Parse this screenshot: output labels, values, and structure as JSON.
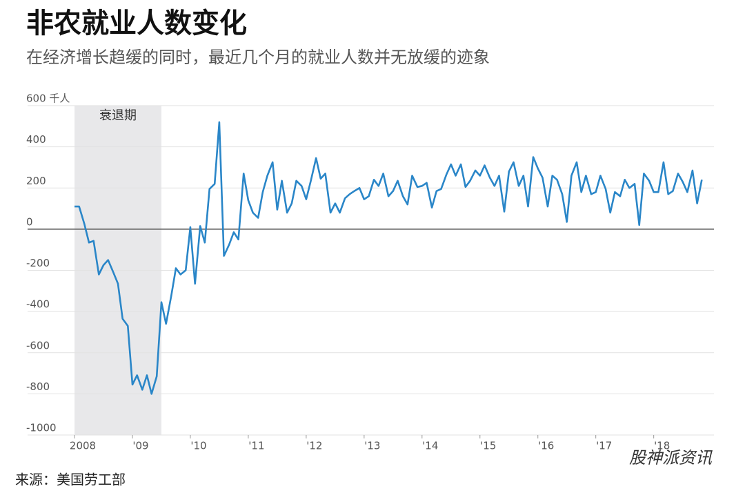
{
  "chart_data": {
    "type": "line",
    "title": "非农就业人数变化",
    "subtitle": "在经济增长趋缓的同时，最近几个月的就业人数并无放缓的迹象",
    "source": "来源：美国劳工部",
    "watermark": "股神派资讯",
    "recession": {
      "label": "衰退期",
      "start": 2008.0,
      "end": 2009.5
    },
    "xlim": [
      2007.19,
      2019.04
    ],
    "xticks": [
      2008,
      {
        "value": 2009,
        "label": "'09"
      },
      {
        "value": 2010,
        "label": "'10"
      },
      {
        "value": 2011,
        "label": "'11"
      },
      {
        "value": 2012,
        "label": "'12"
      },
      {
        "value": 2013,
        "label": "'13"
      },
      {
        "value": 2014,
        "label": "'14"
      },
      {
        "value": 2015,
        "label": "'15"
      },
      {
        "value": 2016,
        "label": "'16"
      },
      {
        "value": 2017,
        "label": "'17"
      },
      {
        "value": 2018,
        "label": "'18"
      }
    ],
    "ylim": [
      -1000,
      600
    ],
    "yticks": [
      -1000,
      -800,
      -600,
      -400,
      -200,
      0,
      200,
      400,
      {
        "value": 600,
        "label": "600 千人"
      }
    ],
    "grid": true,
    "series": [
      {
        "color": "#2a86c8",
        "x": [
          2008.0,
          2008.08,
          2008.17,
          2008.25,
          2008.33,
          2008.42,
          2008.5,
          2008.58,
          2008.67,
          2008.75,
          2008.83,
          2008.92,
          2009.0,
          2009.08,
          2009.17,
          2009.25,
          2009.33,
          2009.42,
          2009.5,
          2009.58,
          2009.67,
          2009.75,
          2009.83,
          2009.92,
          2010.0,
          2010.08,
          2010.17,
          2010.25,
          2010.33,
          2010.42,
          2010.5,
          2010.58,
          2010.67,
          2010.75,
          2010.83,
          2010.92,
          2011.0,
          2011.08,
          2011.17,
          2011.25,
          2011.33,
          2011.42,
          2011.5,
          2011.58,
          2011.67,
          2011.75,
          2011.83,
          2011.92,
          2012.0,
          2012.08,
          2012.17,
          2012.25,
          2012.33,
          2012.42,
          2012.5,
          2012.58,
          2012.67,
          2012.75,
          2012.83,
          2012.92,
          2013.0,
          2013.08,
          2013.17,
          2013.25,
          2013.33,
          2013.42,
          2013.5,
          2013.58,
          2013.67,
          2013.75,
          2013.83,
          2013.92,
          2014.0,
          2014.08,
          2014.17,
          2014.25,
          2014.33,
          2014.42,
          2014.5,
          2014.58,
          2014.67,
          2014.75,
          2014.83,
          2014.92,
          2015.0,
          2015.08,
          2015.17,
          2015.25,
          2015.33,
          2015.42,
          2015.5,
          2015.58,
          2015.67,
          2015.75,
          2015.83,
          2015.92,
          2016.0,
          2016.08,
          2016.17,
          2016.25,
          2016.33,
          2016.42,
          2016.5,
          2016.58,
          2016.67,
          2016.75,
          2016.83,
          2016.92,
          2017.0,
          2017.08,
          2017.17,
          2017.25,
          2017.33,
          2017.42,
          2017.5,
          2017.58,
          2017.67,
          2017.75,
          2017.83,
          2017.92,
          2018.0,
          2018.08,
          2018.17,
          2018.25,
          2018.33,
          2018.42,
          2018.5,
          2018.58,
          2018.67,
          2018.75,
          2018.83
        ],
        "values": [
          110,
          110,
          25,
          -65,
          -57,
          -220,
          -175,
          -150,
          -210,
          -265,
          -435,
          -470,
          -755,
          -710,
          -780,
          -710,
          -800,
          -715,
          -355,
          -460,
          -325,
          -190,
          -220,
          -200,
          10,
          -265,
          15,
          -65,
          195,
          220,
          520,
          -130,
          -75,
          -15,
          -50,
          270,
          140,
          80,
          55,
          180,
          260,
          325,
          95,
          235,
          80,
          125,
          235,
          210,
          145,
          235,
          345,
          245,
          270,
          80,
          125,
          80,
          150,
          170,
          185,
          200,
          145,
          160,
          240,
          210,
          270,
          160,
          185,
          235,
          160,
          120,
          260,
          205,
          210,
          225,
          105,
          185,
          195,
          265,
          315,
          260,
          315,
          205,
          235,
          285,
          260,
          310,
          250,
          210,
          260,
          85,
          280,
          325,
          210,
          260,
          110,
          350,
          295,
          250,
          110,
          260,
          240,
          170,
          35,
          260,
          325,
          180,
          260,
          170,
          180,
          260,
          195,
          80,
          180,
          160,
          240,
          200,
          220,
          20,
          270,
          235,
          180,
          180,
          325,
          170,
          185,
          270,
          230,
          180,
          285,
          125,
          240
        ]
      }
    ]
  }
}
